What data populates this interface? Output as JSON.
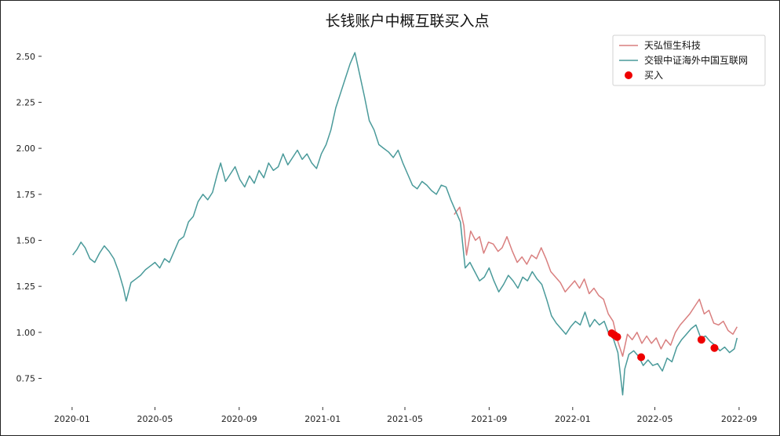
{
  "chart_data": {
    "type": "line",
    "title": "长钱账户中概互联买入点",
    "xlabel": "",
    "ylabel": "",
    "x_range": [
      "2019-12-31",
      "2022-08-31"
    ],
    "ylim": [
      0.62,
      2.58
    ],
    "x_ticks": [
      "2020-01",
      "2020-05",
      "2020-09",
      "2021-01",
      "2021-05",
      "2021-09",
      "2022-01",
      "2022-05",
      "2022-09"
    ],
    "y_ticks": [
      "0.75",
      "1.00",
      "1.25",
      "1.50",
      "1.75",
      "2.00",
      "2.25",
      "2.50"
    ],
    "y_tick_values": [
      0.75,
      1.0,
      1.25,
      1.5,
      1.75,
      2.0,
      2.25,
      2.5
    ],
    "grid": false,
    "legend_position": "top-right",
    "series": [
      {
        "name": "天弘恒生科技",
        "color": "#d97f7f",
        "points": [
          [
            "2021-07-12",
            1.64
          ],
          [
            "2021-07-20",
            1.68
          ],
          [
            "2021-07-26",
            1.58
          ],
          [
            "2021-07-30",
            1.42
          ],
          [
            "2021-08-05",
            1.55
          ],
          [
            "2021-08-12",
            1.5
          ],
          [
            "2021-08-18",
            1.52
          ],
          [
            "2021-08-24",
            1.43
          ],
          [
            "2021-08-31",
            1.49
          ],
          [
            "2021-09-07",
            1.48
          ],
          [
            "2021-09-14",
            1.44
          ],
          [
            "2021-09-20",
            1.46
          ],
          [
            "2021-09-27",
            1.52
          ],
          [
            "2021-10-05",
            1.44
          ],
          [
            "2021-10-12",
            1.38
          ],
          [
            "2021-10-19",
            1.41
          ],
          [
            "2021-10-26",
            1.37
          ],
          [
            "2021-11-02",
            1.42
          ],
          [
            "2021-11-09",
            1.4
          ],
          [
            "2021-11-16",
            1.46
          ],
          [
            "2021-11-23",
            1.4
          ],
          [
            "2021-11-30",
            1.33
          ],
          [
            "2021-12-07",
            1.3
          ],
          [
            "2021-12-14",
            1.27
          ],
          [
            "2021-12-21",
            1.22
          ],
          [
            "2021-12-28",
            1.25
          ],
          [
            "2022-01-04",
            1.28
          ],
          [
            "2022-01-11",
            1.24
          ],
          [
            "2022-01-18",
            1.29
          ],
          [
            "2022-01-25",
            1.21
          ],
          [
            "2022-02-01",
            1.24
          ],
          [
            "2022-02-08",
            1.2
          ],
          [
            "2022-02-15",
            1.18
          ],
          [
            "2022-02-22",
            1.1
          ],
          [
            "2022-03-01",
            1.06
          ],
          [
            "2022-03-08",
            0.95
          ],
          [
            "2022-03-15",
            0.87
          ],
          [
            "2022-03-22",
            0.99
          ],
          [
            "2022-03-29",
            0.96
          ],
          [
            "2022-04-05",
            1.0
          ],
          [
            "2022-04-12",
            0.94
          ],
          [
            "2022-04-19",
            0.98
          ],
          [
            "2022-04-26",
            0.94
          ],
          [
            "2022-05-03",
            0.97
          ],
          [
            "2022-05-10",
            0.91
          ],
          [
            "2022-05-17",
            0.96
          ],
          [
            "2022-05-24",
            0.93
          ],
          [
            "2022-05-31",
            1.0
          ],
          [
            "2022-06-07",
            1.04
          ],
          [
            "2022-06-14",
            1.07
          ],
          [
            "2022-06-21",
            1.1
          ],
          [
            "2022-06-28",
            1.14
          ],
          [
            "2022-07-05",
            1.18
          ],
          [
            "2022-07-12",
            1.1
          ],
          [
            "2022-07-19",
            1.12
          ],
          [
            "2022-07-26",
            1.05
          ],
          [
            "2022-08-02",
            1.04
          ],
          [
            "2022-08-09",
            1.06
          ],
          [
            "2022-08-16",
            1.01
          ],
          [
            "2022-08-23",
            0.99
          ],
          [
            "2022-08-29",
            1.03
          ]
        ]
      },
      {
        "name": "交银中证海外中国互联网",
        "color": "#4a9a9a",
        "points": [
          [
            "2020-01-02",
            1.42
          ],
          [
            "2020-01-08",
            1.45
          ],
          [
            "2020-01-14",
            1.49
          ],
          [
            "2020-01-20",
            1.46
          ],
          [
            "2020-01-27",
            1.4
          ],
          [
            "2020-02-03",
            1.38
          ],
          [
            "2020-02-10",
            1.43
          ],
          [
            "2020-02-17",
            1.47
          ],
          [
            "2020-02-24",
            1.44
          ],
          [
            "2020-03-02",
            1.4
          ],
          [
            "2020-03-09",
            1.33
          ],
          [
            "2020-03-16",
            1.24
          ],
          [
            "2020-03-20",
            1.17
          ],
          [
            "2020-03-27",
            1.27
          ],
          [
            "2020-04-03",
            1.29
          ],
          [
            "2020-04-10",
            1.31
          ],
          [
            "2020-04-17",
            1.34
          ],
          [
            "2020-04-24",
            1.36
          ],
          [
            "2020-05-01",
            1.38
          ],
          [
            "2020-05-08",
            1.35
          ],
          [
            "2020-05-15",
            1.4
          ],
          [
            "2020-05-22",
            1.38
          ],
          [
            "2020-05-29",
            1.44
          ],
          [
            "2020-06-05",
            1.5
          ],
          [
            "2020-06-12",
            1.52
          ],
          [
            "2020-06-19",
            1.6
          ],
          [
            "2020-06-26",
            1.63
          ],
          [
            "2020-07-03",
            1.71
          ],
          [
            "2020-07-10",
            1.75
          ],
          [
            "2020-07-17",
            1.72
          ],
          [
            "2020-07-24",
            1.76
          ],
          [
            "2020-07-31",
            1.86
          ],
          [
            "2020-08-05",
            1.92
          ],
          [
            "2020-08-12",
            1.82
          ],
          [
            "2020-08-19",
            1.86
          ],
          [
            "2020-08-26",
            1.9
          ],
          [
            "2020-09-02",
            1.83
          ],
          [
            "2020-09-09",
            1.79
          ],
          [
            "2020-09-16",
            1.85
          ],
          [
            "2020-09-23",
            1.81
          ],
          [
            "2020-09-30",
            1.88
          ],
          [
            "2020-10-07",
            1.84
          ],
          [
            "2020-10-14",
            1.92
          ],
          [
            "2020-10-21",
            1.88
          ],
          [
            "2020-10-28",
            1.9
          ],
          [
            "2020-11-04",
            1.97
          ],
          [
            "2020-11-11",
            1.91
          ],
          [
            "2020-11-18",
            1.95
          ],
          [
            "2020-11-25",
            1.99
          ],
          [
            "2020-12-02",
            1.94
          ],
          [
            "2020-12-09",
            1.97
          ],
          [
            "2020-12-16",
            1.92
          ],
          [
            "2020-12-23",
            1.89
          ],
          [
            "2020-12-30",
            1.97
          ],
          [
            "2021-01-06",
            2.02
          ],
          [
            "2021-01-13",
            2.1
          ],
          [
            "2021-01-20",
            2.22
          ],
          [
            "2021-01-27",
            2.3
          ],
          [
            "2021-02-03",
            2.38
          ],
          [
            "2021-02-10",
            2.46
          ],
          [
            "2021-02-17",
            2.52
          ],
          [
            "2021-02-24",
            2.4
          ],
          [
            "2021-03-03",
            2.28
          ],
          [
            "2021-03-10",
            2.15
          ],
          [
            "2021-03-17",
            2.1
          ],
          [
            "2021-03-24",
            2.02
          ],
          [
            "2021-03-31",
            2.0
          ],
          [
            "2021-04-07",
            1.98
          ],
          [
            "2021-04-14",
            1.95
          ],
          [
            "2021-04-21",
            1.99
          ],
          [
            "2021-04-28",
            1.92
          ],
          [
            "2021-05-05",
            1.86
          ],
          [
            "2021-05-12",
            1.8
          ],
          [
            "2021-05-19",
            1.78
          ],
          [
            "2021-05-26",
            1.82
          ],
          [
            "2021-06-02",
            1.8
          ],
          [
            "2021-06-09",
            1.77
          ],
          [
            "2021-06-16",
            1.75
          ],
          [
            "2021-06-23",
            1.8
          ],
          [
            "2021-06-30",
            1.79
          ],
          [
            "2021-07-07",
            1.72
          ],
          [
            "2021-07-14",
            1.66
          ],
          [
            "2021-07-21",
            1.6
          ],
          [
            "2021-07-28",
            1.35
          ],
          [
            "2021-08-04",
            1.38
          ],
          [
            "2021-08-11",
            1.33
          ],
          [
            "2021-08-18",
            1.28
          ],
          [
            "2021-08-25",
            1.3
          ],
          [
            "2021-09-01",
            1.35
          ],
          [
            "2021-09-08",
            1.28
          ],
          [
            "2021-09-15",
            1.22
          ],
          [
            "2021-09-22",
            1.26
          ],
          [
            "2021-09-29",
            1.31
          ],
          [
            "2021-10-06",
            1.28
          ],
          [
            "2021-10-13",
            1.24
          ],
          [
            "2021-10-20",
            1.3
          ],
          [
            "2021-10-27",
            1.28
          ],
          [
            "2021-11-03",
            1.33
          ],
          [
            "2021-11-10",
            1.29
          ],
          [
            "2021-11-17",
            1.26
          ],
          [
            "2021-11-24",
            1.18
          ],
          [
            "2021-12-01",
            1.09
          ],
          [
            "2021-12-08",
            1.05
          ],
          [
            "2021-12-15",
            1.02
          ],
          [
            "2021-12-22",
            0.99
          ],
          [
            "2021-12-29",
            1.03
          ],
          [
            "2022-01-05",
            1.06
          ],
          [
            "2022-01-12",
            1.04
          ],
          [
            "2022-01-19",
            1.11
          ],
          [
            "2022-01-26",
            1.03
          ],
          [
            "2022-02-02",
            1.07
          ],
          [
            "2022-02-09",
            1.04
          ],
          [
            "2022-02-16",
            1.06
          ],
          [
            "2022-02-23",
            0.99
          ],
          [
            "2022-03-01",
            0.97
          ],
          [
            "2022-03-08",
            0.89
          ],
          [
            "2022-03-15",
            0.66
          ],
          [
            "2022-03-18",
            0.8
          ],
          [
            "2022-03-24",
            0.88
          ],
          [
            "2022-03-31",
            0.9
          ],
          [
            "2022-04-07",
            0.87
          ],
          [
            "2022-04-14",
            0.82
          ],
          [
            "2022-04-21",
            0.85
          ],
          [
            "2022-04-28",
            0.82
          ],
          [
            "2022-05-05",
            0.83
          ],
          [
            "2022-05-12",
            0.79
          ],
          [
            "2022-05-19",
            0.86
          ],
          [
            "2022-05-26",
            0.84
          ],
          [
            "2022-06-02",
            0.92
          ],
          [
            "2022-06-09",
            0.96
          ],
          [
            "2022-06-16",
            0.99
          ],
          [
            "2022-06-23",
            1.02
          ],
          [
            "2022-06-30",
            1.04
          ],
          [
            "2022-07-07",
            0.97
          ],
          [
            "2022-07-14",
            0.98
          ],
          [
            "2022-07-21",
            0.95
          ],
          [
            "2022-07-28",
            0.93
          ],
          [
            "2022-08-04",
            0.9
          ],
          [
            "2022-08-11",
            0.92
          ],
          [
            "2022-08-18",
            0.89
          ],
          [
            "2022-08-25",
            0.91
          ],
          [
            "2022-08-29",
            0.97
          ]
        ]
      }
    ],
    "buy_points": {
      "name": "买入",
      "color": "#ee0000",
      "points": [
        [
          "2022-02-27",
          0.995
        ],
        [
          "2022-03-03",
          0.985
        ],
        [
          "2022-03-07",
          0.975
        ],
        [
          "2022-04-11",
          0.865
        ],
        [
          "2022-07-08",
          0.96
        ],
        [
          "2022-07-27",
          0.915
        ]
      ]
    }
  }
}
